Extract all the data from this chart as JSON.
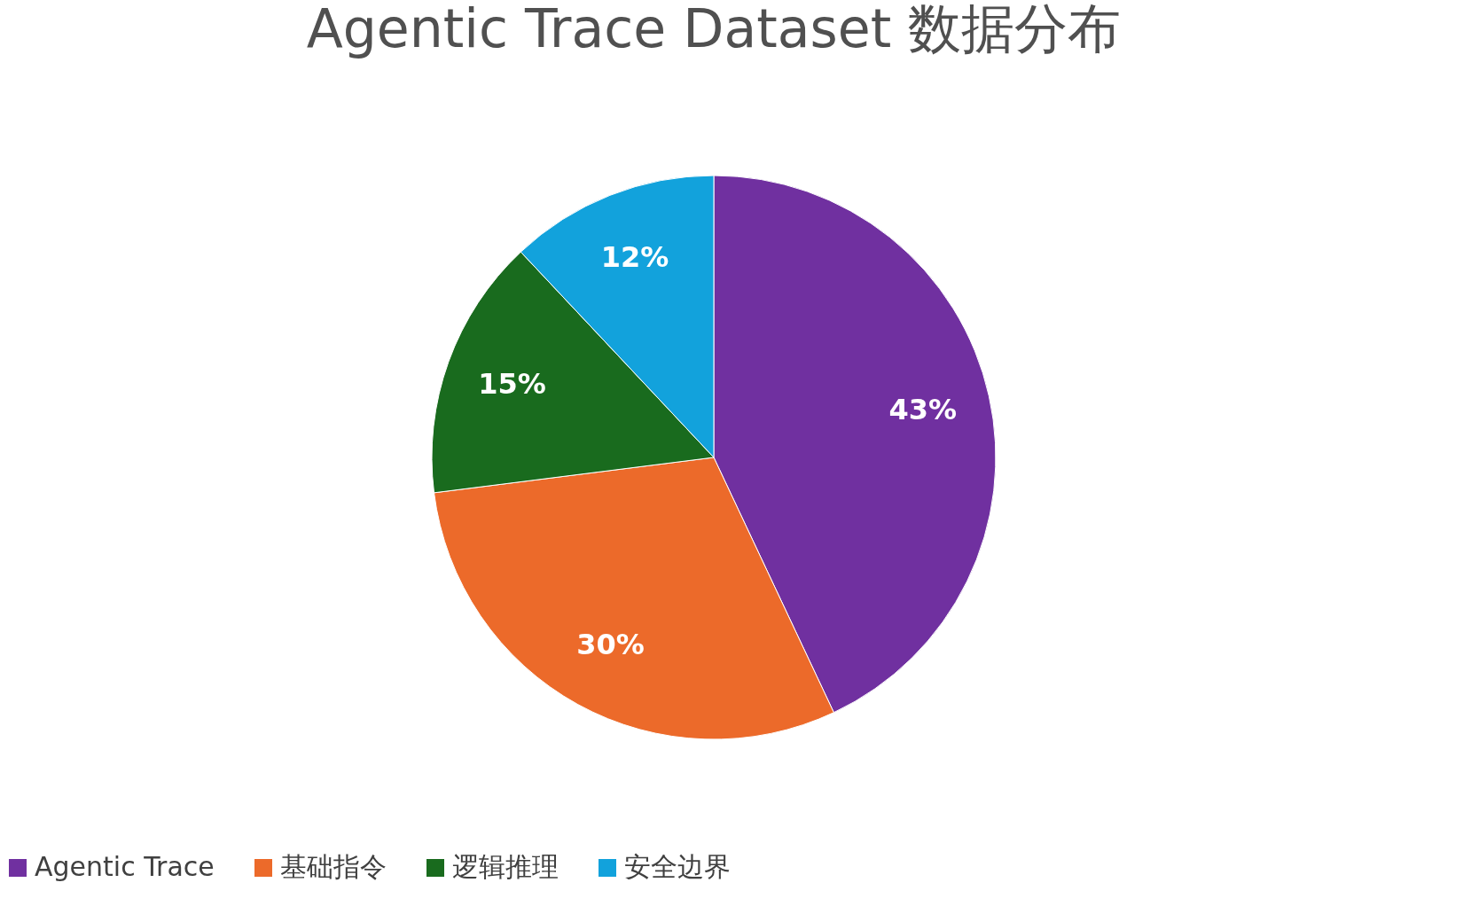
{
  "chart_data": {
    "type": "pie",
    "title": "Agentic Trace Dataset 数据分布",
    "categories": [
      "Agentic Trace",
      "基础指令",
      "逻辑推理",
      "安全边界"
    ],
    "values": [
      43,
      30,
      15,
      12
    ],
    "colors": [
      "#7030a0",
      "#ec6a2a",
      "#196b1e",
      "#12a2dc"
    ],
    "value_labels": [
      "43%",
      "30%",
      "15%",
      "12%"
    ],
    "legend": "bottom"
  }
}
